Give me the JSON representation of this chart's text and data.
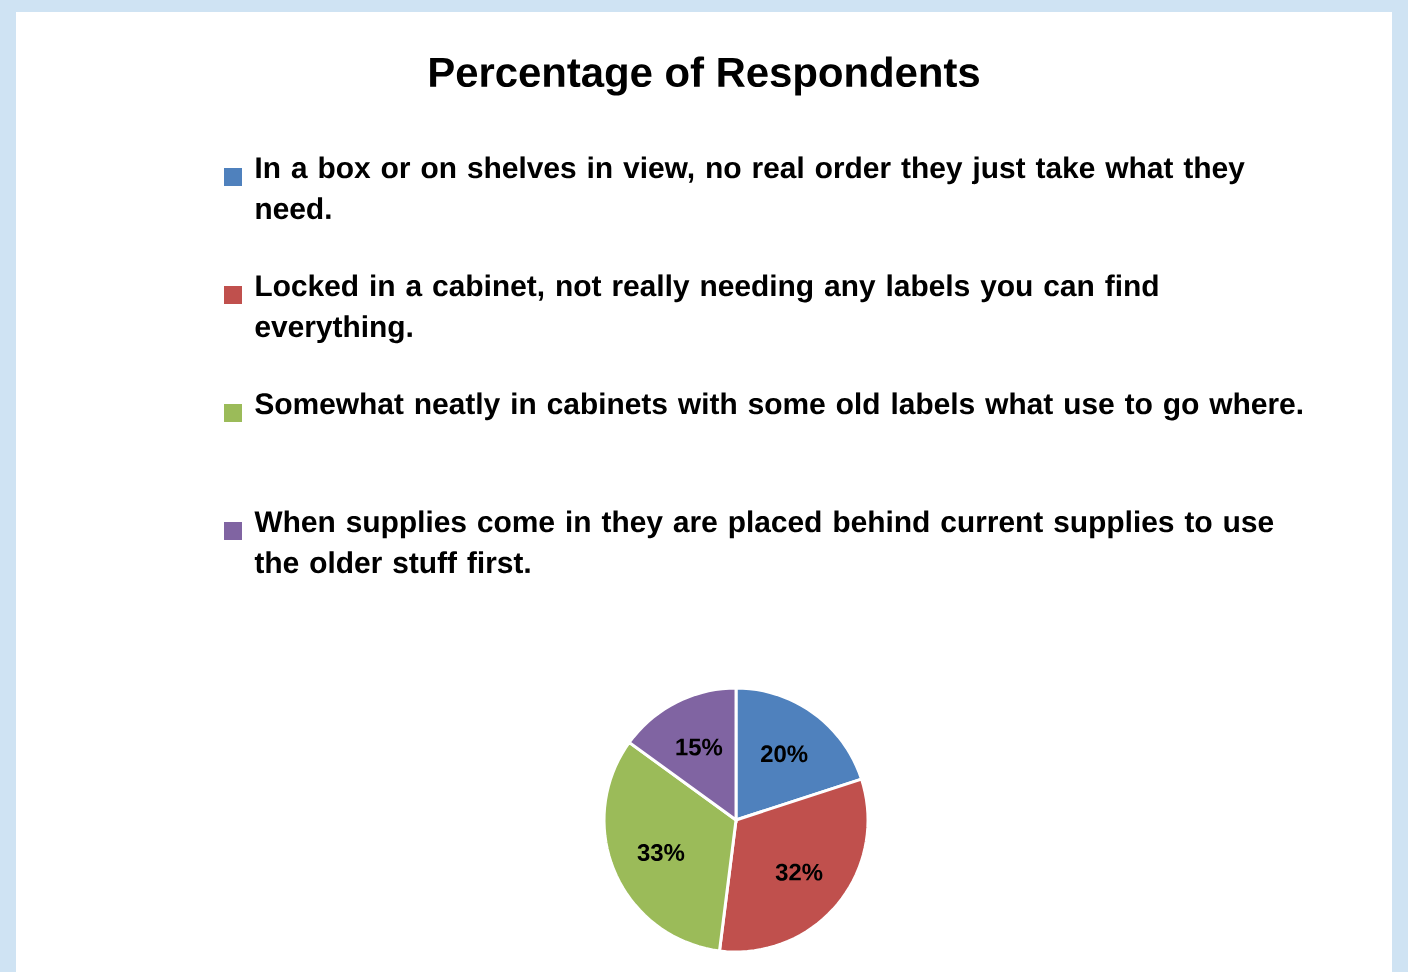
{
  "chart_data": {
    "type": "pie",
    "title": "Percentage of Respondents",
    "categories": [
      "In a box or on shelves in view, no real order they just take what they need.",
      "Locked in a cabinet, not really needing any labels you can find everything.",
      "Somewhat neatly in cabinets with some old labels what use to go where.",
      "When supplies come in they are placed behind current supplies to use the older stuff first."
    ],
    "values": [
      20,
      32,
      33,
      15
    ],
    "value_labels": [
      "20%",
      "32%",
      "33%",
      "15%"
    ],
    "colors": [
      "#4f81bd",
      "#c0504d",
      "#9bbb59",
      "#8064a2"
    ],
    "legend": "top"
  }
}
